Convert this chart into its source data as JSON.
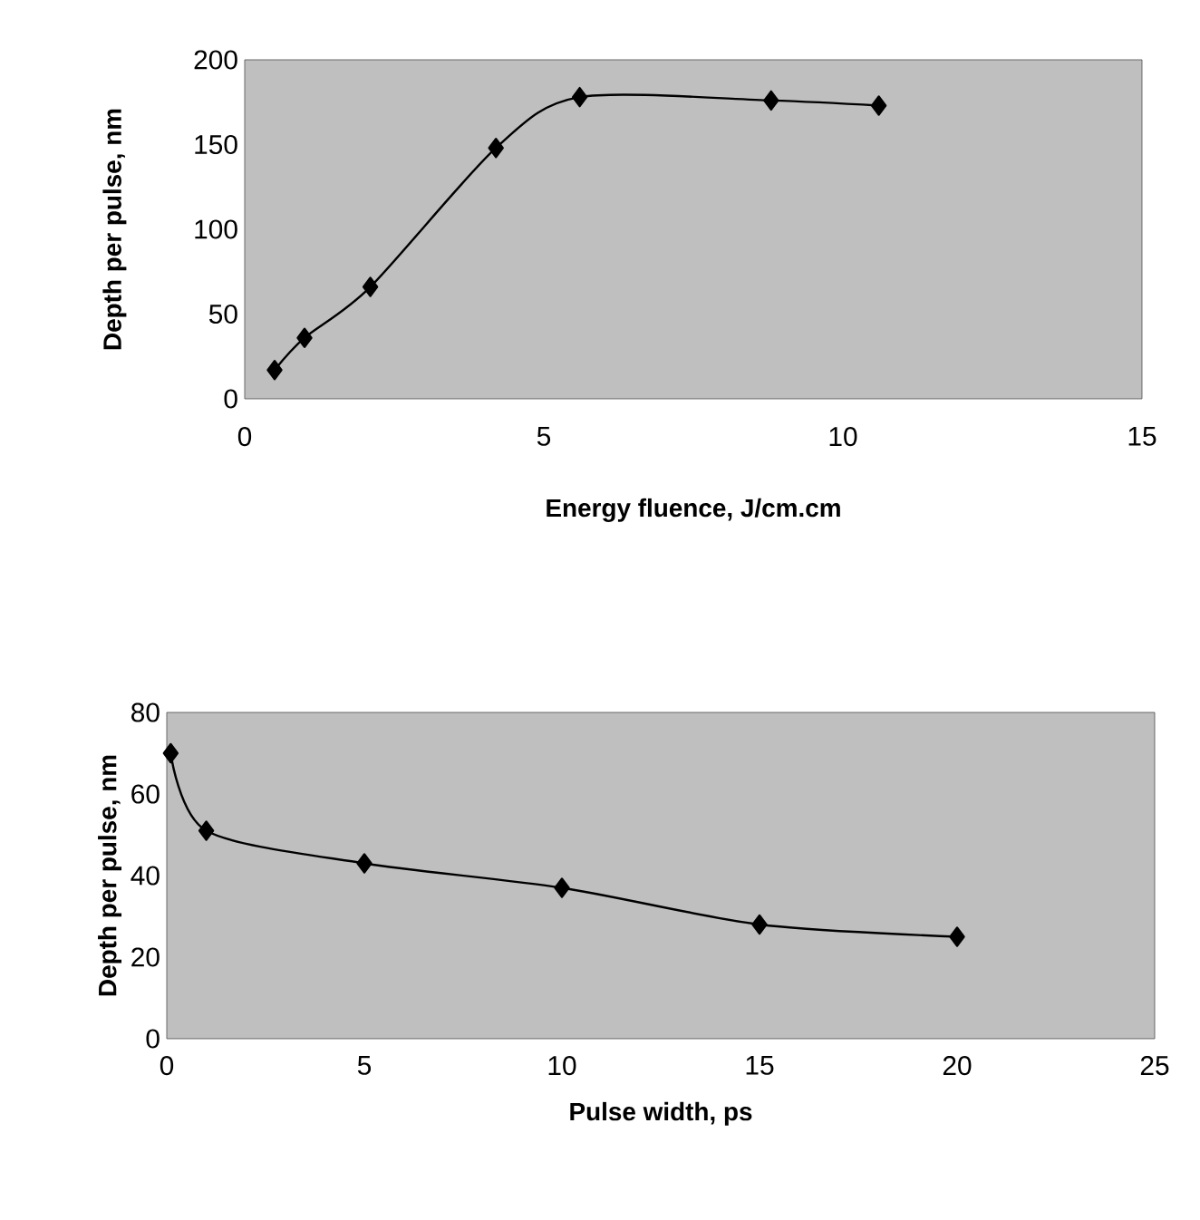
{
  "chart_data": [
    {
      "type": "line",
      "xlabel": "Energy fluence, J/cm.cm",
      "ylabel": "Depth per pulse, nm",
      "x": [
        0.5,
        1,
        2.1,
        4.2,
        5.6,
        8.8,
        10.6
      ],
      "series": [
        {
          "color": "#000000",
          "values": [
            17,
            36,
            66,
            148,
            178,
            176,
            173
          ]
        }
      ],
      "xlim": [
        0,
        15
      ],
      "xticks": [
        0,
        5,
        10,
        15
      ],
      "ylim": [
        0,
        200
      ],
      "yticks": [
        0,
        50,
        100,
        150,
        200
      ],
      "grid": false,
      "marker": "diamond",
      "line_style": "solid"
    },
    {
      "type": "line",
      "xlabel": "Pulse width, ps",
      "ylabel": "Depth per pulse, nm",
      "x": [
        0.1,
        1,
        5,
        10,
        15,
        20
      ],
      "series": [
        {
          "color": "#000000",
          "values": [
            70,
            51,
            43,
            37,
            28,
            25
          ]
        }
      ],
      "xlim": [
        0,
        25
      ],
      "xticks": [
        0,
        5,
        10,
        15,
        20,
        25
      ],
      "ylim": [
        0,
        80
      ],
      "yticks": [
        0,
        20,
        40,
        60,
        80
      ],
      "grid": false,
      "marker": "diamond",
      "line_style": "solid"
    }
  ]
}
